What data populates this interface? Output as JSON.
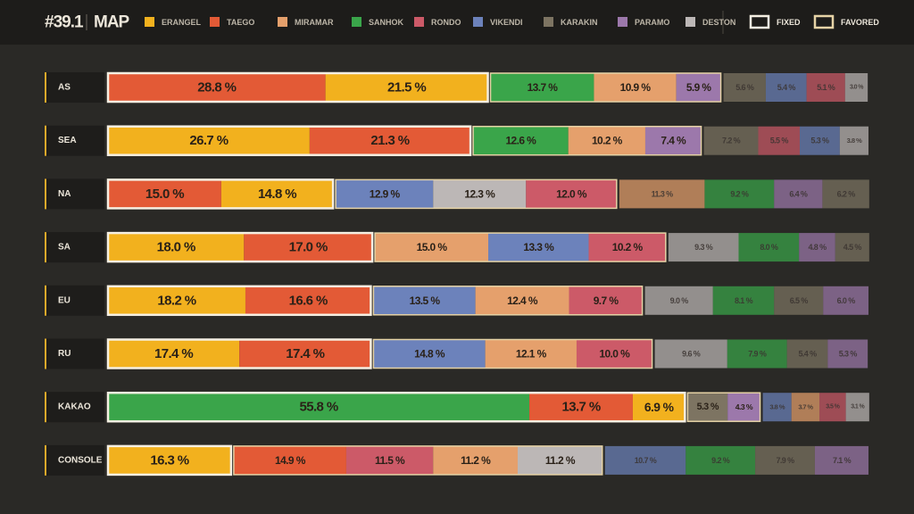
{
  "chart_data": {
    "type": "stacked-bar",
    "title": "#39.1",
    "subtitle": "MAP",
    "xlim": [
      0,
      100
    ],
    "maps": [
      {
        "name": "ERANGEL",
        "color": "#f2b11e"
      },
      {
        "name": "TAEGO",
        "color": "#e35a36"
      },
      {
        "name": "MIRAMAR",
        "color": "#e5a06c"
      },
      {
        "name": "SANHOK",
        "color": "#3aa54a"
      },
      {
        "name": "RONDO",
        "color": "#cc5a68"
      },
      {
        "name": "VIKENDI",
        "color": "#6c82bb"
      },
      {
        "name": "KARAKIN",
        "color": "#7d7462"
      },
      {
        "name": "PARAMO",
        "color": "#9c78ab"
      },
      {
        "name": "DESTON",
        "color": "#bcb7b6"
      }
    ],
    "groups": [
      {
        "name": "FIXED",
        "color": "#f5efe2"
      },
      {
        "name": "FAVORED",
        "color": "#e6d3a6"
      }
    ],
    "rows": [
      {
        "category": "AS",
        "fixed": [
          {
            "map": "TAEGO",
            "value": 28.8,
            "value_label": "28.8 %"
          },
          {
            "map": "ERANGEL",
            "value": 21.5,
            "value_label": "21.5 %"
          }
        ],
        "favored": [
          {
            "map": "SANHOK",
            "value": 13.7,
            "value_label": "13.7 %"
          },
          {
            "map": "MIRAMAR",
            "value": 10.9,
            "value_label": "10.9 %"
          },
          {
            "map": "PARAMO",
            "value": 5.9,
            "value_label": "5.9 %"
          }
        ],
        "other": [
          {
            "map": "KARAKIN",
            "value": 5.6,
            "value_label": "5.6 %"
          },
          {
            "map": "VIKENDI",
            "value": 5.4,
            "value_label": "5.4 %"
          },
          {
            "map": "RONDO",
            "value": 5.1,
            "value_label": "5.1 %"
          },
          {
            "map": "DESTON",
            "value": 3.0,
            "value_label": "3.0 %"
          }
        ]
      },
      {
        "category": "SEA",
        "fixed": [
          {
            "map": "ERANGEL",
            "value": 26.7,
            "value_label": "26.7 %"
          },
          {
            "map": "TAEGO",
            "value": 21.3,
            "value_label": "21.3 %"
          }
        ],
        "favored": [
          {
            "map": "SANHOK",
            "value": 12.6,
            "value_label": "12.6 %"
          },
          {
            "map": "MIRAMAR",
            "value": 10.2,
            "value_label": "10.2 %"
          },
          {
            "map": "PARAMO",
            "value": 7.4,
            "value_label": "7.4 %"
          }
        ],
        "other": [
          {
            "map": "KARAKIN",
            "value": 7.2,
            "value_label": "7.2 %"
          },
          {
            "map": "RONDO",
            "value": 5.5,
            "value_label": "5.5 %"
          },
          {
            "map": "VIKENDI",
            "value": 5.3,
            "value_label": "5.3 %"
          },
          {
            "map": "DESTON",
            "value": 3.8,
            "value_label": "3.8 %"
          }
        ]
      },
      {
        "category": "NA",
        "fixed": [
          {
            "map": "TAEGO",
            "value": 15.0,
            "value_label": "15.0 %"
          },
          {
            "map": "ERANGEL",
            "value": 14.8,
            "value_label": "14.8 %"
          }
        ],
        "favored": [
          {
            "map": "VIKENDI",
            "value": 12.9,
            "value_label": "12.9 %"
          },
          {
            "map": "DESTON",
            "value": 12.3,
            "value_label": "12.3 %"
          },
          {
            "map": "RONDO",
            "value": 12.0,
            "value_label": "12.0 %"
          }
        ],
        "other": [
          {
            "map": "MIRAMAR",
            "value": 11.3,
            "value_label": "11.3 %"
          },
          {
            "map": "SANHOK",
            "value": 9.2,
            "value_label": "9.2 %"
          },
          {
            "map": "PARAMO",
            "value": 6.4,
            "value_label": "6.4 %"
          },
          {
            "map": "KARAKIN",
            "value": 6.2,
            "value_label": "6.2 %"
          }
        ]
      },
      {
        "category": "SA",
        "fixed": [
          {
            "map": "ERANGEL",
            "value": 18.0,
            "value_label": "18.0 %"
          },
          {
            "map": "TAEGO",
            "value": 17.0,
            "value_label": "17.0 %"
          }
        ],
        "favored": [
          {
            "map": "MIRAMAR",
            "value": 15.0,
            "value_label": "15.0 %"
          },
          {
            "map": "VIKENDI",
            "value": 13.3,
            "value_label": "13.3 %"
          },
          {
            "map": "RONDO",
            "value": 10.2,
            "value_label": "10.2 %"
          }
        ],
        "other": [
          {
            "map": "DESTON",
            "value": 9.3,
            "value_label": "9.3 %"
          },
          {
            "map": "SANHOK",
            "value": 8.0,
            "value_label": "8.0 %"
          },
          {
            "map": "PARAMO",
            "value": 4.8,
            "value_label": "4.8 %"
          },
          {
            "map": "KARAKIN",
            "value": 4.5,
            "value_label": "4.5 %"
          }
        ]
      },
      {
        "category": "EU",
        "fixed": [
          {
            "map": "ERANGEL",
            "value": 18.2,
            "value_label": "18.2 %"
          },
          {
            "map": "TAEGO",
            "value": 16.6,
            "value_label": "16.6 %"
          }
        ],
        "favored": [
          {
            "map": "VIKENDI",
            "value": 13.5,
            "value_label": "13.5 %"
          },
          {
            "map": "MIRAMAR",
            "value": 12.4,
            "value_label": "12.4 %"
          },
          {
            "map": "RONDO",
            "value": 9.7,
            "value_label": "9.7 %"
          }
        ],
        "other": [
          {
            "map": "DESTON",
            "value": 9.0,
            "value_label": "9.0 %"
          },
          {
            "map": "SANHOK",
            "value": 8.1,
            "value_label": "8.1 %"
          },
          {
            "map": "KARAKIN",
            "value": 6.5,
            "value_label": "6.5 %"
          },
          {
            "map": "PARAMO",
            "value": 6.0,
            "value_label": "6.0 %"
          }
        ]
      },
      {
        "category": "RU",
        "fixed": [
          {
            "map": "ERANGEL",
            "value": 17.4,
            "value_label": "17.4 %"
          },
          {
            "map": "TAEGO",
            "value": 17.4,
            "value_label": "17.4 %"
          }
        ],
        "favored": [
          {
            "map": "VIKENDI",
            "value": 14.8,
            "value_label": "14.8 %"
          },
          {
            "map": "MIRAMAR",
            "value": 12.1,
            "value_label": "12.1 %"
          },
          {
            "map": "RONDO",
            "value": 10.0,
            "value_label": "10.0 %"
          }
        ],
        "other": [
          {
            "map": "DESTON",
            "value": 9.6,
            "value_label": "9.6 %"
          },
          {
            "map": "SANHOK",
            "value": 7.9,
            "value_label": "7.9 %"
          },
          {
            "map": "KARAKIN",
            "value": 5.4,
            "value_label": "5.4 %"
          },
          {
            "map": "PARAMO",
            "value": 5.3,
            "value_label": "5.3 %"
          }
        ]
      },
      {
        "category": "KAKAO",
        "fixed": [
          {
            "map": "SANHOK",
            "value": 55.8,
            "value_label": "55.8 %"
          },
          {
            "map": "TAEGO",
            "value": 13.7,
            "value_label": "13.7 %"
          },
          {
            "map": "ERANGEL",
            "value": 6.9,
            "value_label": "6.9 %"
          }
        ],
        "favored": [
          {
            "map": "KARAKIN",
            "value": 5.3,
            "value_label": "5.3 %"
          },
          {
            "map": "PARAMO",
            "value": 4.3,
            "value_label": "4.3 %"
          }
        ],
        "other": [
          {
            "map": "VIKENDI",
            "value": 3.8,
            "value_label": "3.8 %"
          },
          {
            "map": "MIRAMAR",
            "value": 3.7,
            "value_label": "3.7 %"
          },
          {
            "map": "RONDO",
            "value": 3.5,
            "value_label": "3.5 %"
          },
          {
            "map": "DESTON",
            "value": 3.1,
            "value_label": "3.1 %"
          }
        ]
      },
      {
        "category": "CONSOLE",
        "fixed": [
          {
            "map": "ERANGEL",
            "value": 16.3,
            "value_label": "16.3 %"
          }
        ],
        "favored": [
          {
            "map": "TAEGO",
            "value": 14.9,
            "value_label": "14.9 %"
          },
          {
            "map": "RONDO",
            "value": 11.5,
            "value_label": "11.5 %"
          },
          {
            "map": "MIRAMAR",
            "value": 11.2,
            "value_label": "11.2 %"
          },
          {
            "map": "DESTON",
            "value": 11.2,
            "value_label": "11.2 %"
          }
        ],
        "other": [
          {
            "map": "VIKENDI",
            "value": 10.7,
            "value_label": "10.7 %"
          },
          {
            "map": "SANHOK",
            "value": 9.2,
            "value_label": "9.2 %"
          },
          {
            "map": "KARAKIN",
            "value": 7.9,
            "value_label": "7.9 %"
          },
          {
            "map": "PARAMO",
            "value": 7.1,
            "value_label": "7.1 %"
          }
        ]
      }
    ]
  }
}
